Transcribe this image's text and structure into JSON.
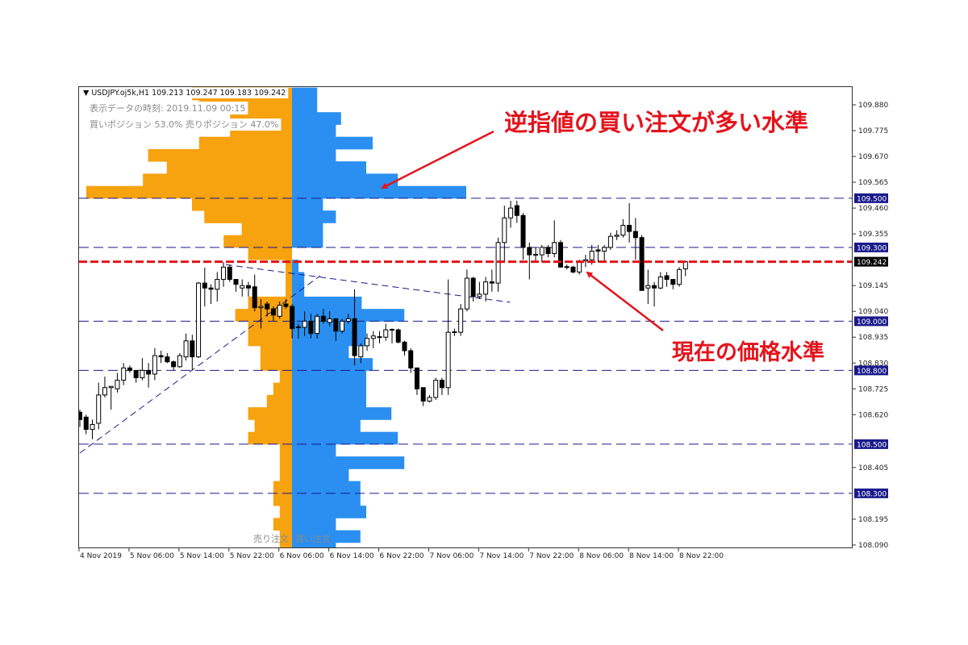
{
  "header": {
    "symbol_line": "▼ USDJPY.oj5k,H1  109.213 109.247 109.183 109.242",
    "data_time": "表示データの時刻: 2019.11.09 00:15",
    "positions": "買いポジション 53.0% 売りポジション 47.0%"
  },
  "annotations": {
    "stop_buy_level": "逆指値の買い注文が多い水準",
    "current_price_level": "現在の価格水準"
  },
  "histogram_labels": {
    "sell": "売り注文",
    "buy": "買い注文"
  },
  "colors": {
    "sell_orders": "#f7a20f",
    "buy_orders": "#2a8ff0",
    "level_line": "#1a1a8c",
    "current_price_line": "#e3141c",
    "annotation": "#e3141c",
    "bull_candle": "#ffffff",
    "bear_candle": "#000000"
  },
  "chart_data": {
    "type": "candlestick",
    "symbol": "USDJPY.oj5k",
    "timeframe": "H1",
    "ylim": [
      108.09,
      109.88
    ],
    "y_ticks": [
      "109.880",
      "109.775",
      "109.670",
      "109.565",
      "109.460",
      "109.355",
      "109.145",
      "109.040",
      "108.935",
      "108.830",
      "108.725",
      "108.620",
      "108.405",
      "108.195",
      "108.090"
    ],
    "x_ticks": [
      "4 Nov 2019",
      "5 Nov 06:00",
      "5 Nov 14:00",
      "5 Nov 22:00",
      "6 Nov 06:00",
      "6 Nov 14:00",
      "6 Nov 22:00",
      "7 Nov 06:00",
      "7 Nov 14:00",
      "7 Nov 22:00",
      "8 Nov 06:00",
      "8 Nov 14:00",
      "8 Nov 22:00"
    ],
    "first_bar": "4 Nov 2019 22:00",
    "bar_interval_hours": 1,
    "ohlc": [
      [
        108.63,
        108.64,
        108.57,
        108.6
      ],
      [
        108.61,
        108.62,
        108.54,
        108.56
      ],
      [
        108.56,
        108.6,
        108.52,
        108.58
      ],
      [
        108.585,
        108.75,
        108.56,
        108.7
      ],
      [
        108.7,
        108.775,
        108.69,
        108.73
      ],
      [
        108.73,
        108.735,
        108.64,
        108.735
      ],
      [
        108.725,
        108.79,
        108.71,
        108.76
      ],
      [
        108.76,
        108.83,
        108.74,
        108.81
      ],
      [
        108.81,
        108.82,
        108.79,
        108.8
      ],
      [
        108.8,
        108.8,
        108.75,
        108.77
      ],
      [
        108.77,
        108.85,
        108.76,
        108.8
      ],
      [
        108.8,
        108.83,
        108.73,
        108.785
      ],
      [
        108.785,
        108.89,
        108.76,
        108.86
      ],
      [
        108.86,
        108.88,
        108.83,
        108.855
      ],
      [
        108.855,
        108.87,
        108.83,
        108.835
      ],
      [
        108.835,
        108.84,
        108.8,
        108.815
      ],
      [
        108.815,
        108.87,
        108.81,
        108.86
      ],
      [
        108.855,
        108.95,
        108.84,
        108.92
      ],
      [
        108.92,
        108.945,
        108.8,
        108.855
      ],
      [
        108.855,
        109.16,
        108.85,
        109.155
      ],
      [
        109.155,
        109.218,
        109.06,
        109.135
      ],
      [
        109.135,
        109.15,
        109.07,
        109.13
      ],
      [
        109.13,
        109.2,
        109.08,
        109.17
      ],
      [
        109.17,
        109.24,
        109.14,
        109.22
      ],
      [
        109.22,
        109.23,
        109.16,
        109.17
      ],
      [
        109.17,
        109.17,
        109.12,
        109.15
      ],
      [
        109.135,
        109.17,
        109.1,
        109.145
      ],
      [
        109.145,
        109.16,
        109.1,
        109.135
      ],
      [
        109.14,
        109.19,
        109.04,
        109.055
      ],
      [
        109.055,
        109.09,
        108.97,
        109.06
      ],
      [
        109.07,
        109.08,
        109.02,
        109.05
      ],
      [
        109.05,
        109.06,
        109.0,
        109.025
      ],
      [
        109.02,
        109.08,
        109.01,
        109.065
      ],
      [
        109.07,
        109.09,
        109.05,
        109.06
      ],
      [
        109.06,
        109.07,
        108.93,
        108.97
      ],
      [
        108.975,
        108.99,
        108.93,
        108.977
      ],
      [
        108.975,
        109.04,
        108.94,
        109.0
      ],
      [
        109.0,
        109.03,
        108.93,
        108.95
      ],
      [
        108.95,
        109.03,
        108.93,
        109.02
      ],
      [
        109.02,
        109.05,
        108.99,
        109.0
      ],
      [
        108.995,
        109.04,
        108.98,
        109.01
      ],
      [
        109.01,
        109.01,
        108.92,
        108.96
      ],
      [
        108.96,
        109.01,
        108.95,
        109.0
      ],
      [
        109.0,
        109.03,
        108.99,
        109.01
      ],
      [
        109.01,
        109.13,
        108.82,
        108.86
      ],
      [
        108.855,
        108.91,
        108.83,
        108.9
      ],
      [
        108.9,
        108.95,
        108.88,
        108.93
      ],
      [
        108.93,
        108.96,
        108.89,
        108.94
      ],
      [
        108.935,
        108.96,
        108.91,
        108.937
      ],
      [
        108.935,
        108.99,
        108.92,
        108.965
      ],
      [
        108.965,
        108.97,
        108.91,
        108.967
      ],
      [
        108.965,
        108.97,
        108.91,
        108.915
      ],
      [
        108.915,
        108.92,
        108.86,
        108.88
      ],
      [
        108.88,
        108.89,
        108.79,
        108.81
      ],
      [
        108.81,
        108.81,
        108.7,
        108.725
      ],
      [
        108.73,
        108.73,
        108.655,
        108.675
      ],
      [
        108.675,
        108.7,
        108.67,
        108.69
      ],
      [
        108.69,
        108.77,
        108.68,
        108.76
      ],
      [
        108.76,
        108.77,
        108.7,
        108.73
      ],
      [
        108.73,
        109.17,
        108.7,
        108.955
      ],
      [
        108.955,
        108.97,
        108.94,
        108.957
      ],
      [
        108.955,
        109.07,
        108.94,
        109.05
      ],
      [
        109.05,
        109.21,
        109.04,
        109.175
      ],
      [
        109.175,
        109.18,
        109.08,
        109.1
      ],
      [
        109.1,
        109.16,
        109.09,
        109.11
      ],
      [
        109.11,
        109.18,
        109.08,
        109.16
      ],
      [
        109.16,
        109.21,
        109.12,
        109.155
      ],
      [
        109.155,
        109.34,
        109.12,
        109.32
      ],
      [
        109.32,
        109.47,
        109.24,
        109.42
      ],
      [
        109.42,
        109.49,
        109.38,
        109.46
      ],
      [
        109.47,
        109.49,
        109.4,
        109.43
      ],
      [
        109.43,
        109.44,
        109.25,
        109.3
      ],
      [
        109.3,
        109.32,
        109.17,
        109.27
      ],
      [
        109.27,
        109.3,
        109.24,
        109.272
      ],
      [
        109.27,
        109.31,
        109.24,
        109.3
      ],
      [
        109.3,
        109.31,
        109.26,
        109.275
      ],
      [
        109.275,
        109.41,
        109.26,
        109.32
      ],
      [
        109.32,
        109.33,
        109.22,
        109.22
      ],
      [
        109.22,
        109.23,
        109.21,
        109.222
      ],
      [
        109.22,
        109.225,
        109.195,
        109.2
      ],
      [
        109.2,
        109.25,
        109.19,
        109.245
      ],
      [
        109.245,
        109.27,
        109.22,
        109.25
      ],
      [
        109.25,
        109.31,
        109.23,
        109.285
      ],
      [
        109.29,
        109.31,
        109.24,
        109.285
      ],
      [
        109.285,
        109.31,
        109.24,
        109.3
      ],
      [
        109.3,
        109.36,
        109.29,
        109.345
      ],
      [
        109.345,
        109.37,
        109.33,
        109.35
      ],
      [
        109.35,
        109.415,
        109.34,
        109.39
      ],
      [
        109.39,
        109.48,
        109.32,
        109.365
      ],
      [
        109.365,
        109.42,
        109.25,
        109.34
      ],
      [
        109.34,
        109.35,
        109.125,
        109.125
      ],
      [
        109.135,
        109.21,
        109.07,
        109.145
      ],
      [
        109.145,
        109.16,
        109.06,
        109.135
      ],
      [
        109.135,
        109.2,
        109.13,
        109.18
      ],
      [
        109.185,
        109.2,
        109.14,
        109.17
      ],
      [
        109.17,
        109.17,
        109.13,
        109.15
      ],
      [
        109.15,
        109.22,
        109.14,
        109.21
      ],
      [
        109.213,
        109.247,
        109.183,
        109.242
      ]
    ],
    "levels": [
      "109.500",
      "109.300",
      "109.000",
      "108.800",
      "108.500",
      "108.300"
    ],
    "current_price": "109.242",
    "trendlines": [
      {
        "from": [
          "4 Nov 2019 22:00",
          108.464
        ],
        "to": [
          "6 Nov 12:30",
          109.185
        ]
      },
      {
        "from": [
          "5 Nov 21:00",
          109.23
        ],
        "to": [
          "7 Nov 19:00",
          109.077
        ]
      }
    ],
    "order_book": {
      "bucket_size": 0.05,
      "bucket_low": [
        109.9,
        109.85,
        109.8,
        109.75,
        109.7,
        109.65,
        109.6,
        109.55,
        109.5,
        109.45,
        109.4,
        109.35,
        109.3,
        109.25,
        109.2,
        109.15,
        109.1,
        109.05,
        109.0,
        108.95,
        108.9,
        108.85,
        108.8,
        108.75,
        108.7,
        108.65,
        108.6,
        108.55,
        108.5,
        108.45,
        108.4,
        108.35,
        108.3,
        108.25,
        108.2,
        108.15,
        108.1,
        108.05
      ],
      "sell": [
        1.55,
        1.44,
        0.96,
        0.96,
        1.44,
        2.23,
        1.94,
        2.31,
        3.19,
        1.55,
        1.36,
        0.78,
        1.06,
        0.68,
        0.1,
        0.1,
        0.1,
        0.68,
        0.88,
        0.68,
        0.68,
        0.49,
        0.49,
        0.19,
        0.29,
        0.39,
        0.68,
        0.58,
        0.68,
        0.19,
        0.19,
        0.19,
        0.29,
        0.29,
        0.19,
        0.29,
        0.19,
        0.19
      ],
      "buy": [
        0.39,
        0.39,
        0.76,
        0.68,
        1.25,
        0.68,
        1.15,
        1.64,
        2.7,
        0.48,
        0.68,
        0.48,
        0.48,
        0,
        0.1,
        0.19,
        0.19,
        1.08,
        1.74,
        1.15,
        1.15,
        0.88,
        1.25,
        1.15,
        1.15,
        1.15,
        1.54,
        1.06,
        1.64,
        0.68,
        1.74,
        0.88,
        1.06,
        1.06,
        1.15,
        0.68,
        1.06,
        0.68
      ]
    }
  }
}
